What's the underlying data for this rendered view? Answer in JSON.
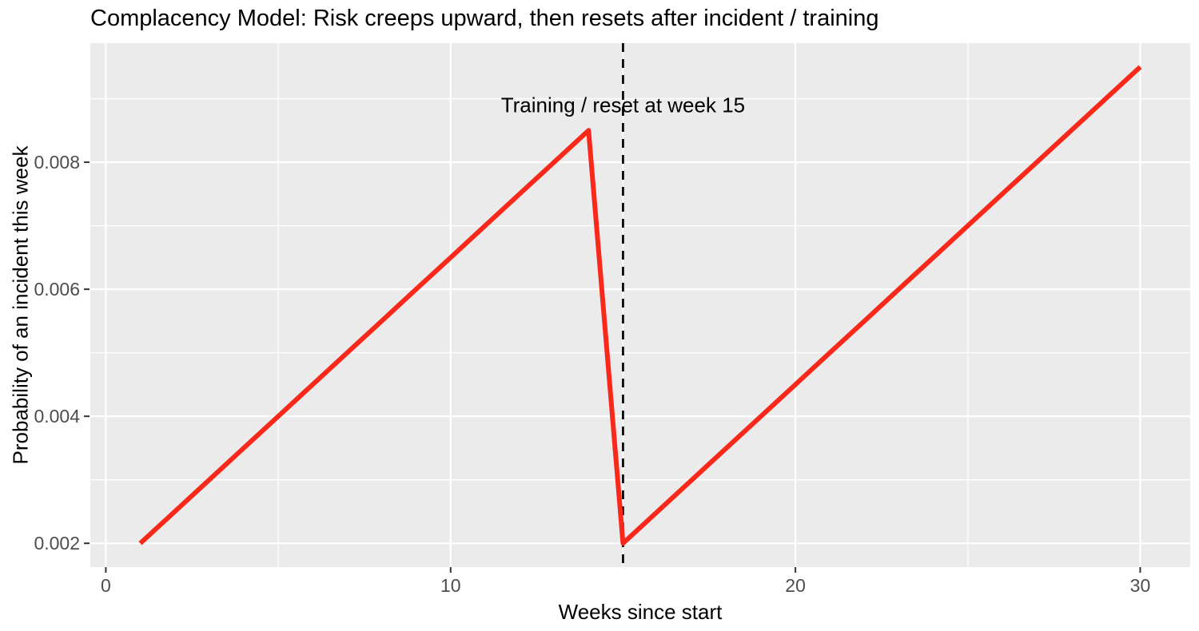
{
  "chart_data": {
    "type": "line",
    "title": "Complacency Model: Risk creeps upward, then resets after incident / training",
    "xlabel": "Weeks since start",
    "ylabel": "Probability of an incident this week",
    "x": [
      1,
      2,
      3,
      4,
      5,
      6,
      7,
      8,
      9,
      10,
      11,
      12,
      13,
      14,
      15,
      16,
      17,
      18,
      19,
      20,
      21,
      22,
      23,
      24,
      25,
      26,
      27,
      28,
      29,
      30
    ],
    "y": [
      0.002,
      0.0025,
      0.003,
      0.0035,
      0.004,
      0.0045,
      0.005,
      0.0055,
      0.006,
      0.0065,
      0.007,
      0.0075,
      0.008,
      0.0085,
      0.002,
      0.0025,
      0.003,
      0.0035,
      0.004,
      0.0045,
      0.005,
      0.0055,
      0.006,
      0.0065,
      0.007,
      0.0075,
      0.008,
      0.0085,
      0.009,
      0.0095
    ],
    "xlim": [
      -0.45,
      31.45
    ],
    "ylim": [
      0.001625,
      0.009875
    ],
    "x_ticks": [
      0,
      10,
      20,
      30
    ],
    "x_tick_labels": [
      "0",
      "10",
      "20",
      "30"
    ],
    "y_ticks": [
      0.002,
      0.004,
      0.006,
      0.008
    ],
    "y_tick_labels": [
      "0.002",
      "0.004",
      "0.006",
      "0.008"
    ],
    "x_minor_ticks": [
      5,
      15,
      25
    ],
    "y_minor_ticks": [
      0.003,
      0.005,
      0.007,
      0.009
    ],
    "grid": true,
    "legend_position": "none",
    "line_color": "#F8281A",
    "panel_bg": "#EBEBEB",
    "grid_color": "#FFFFFF",
    "tick_mark_color": "#333333",
    "tick_label_color": "#4D4D4D",
    "vline": {
      "x": 15,
      "style": "dashed",
      "color": "#000000"
    },
    "annotation": {
      "text": "Training / reset at week 15",
      "x": 15,
      "y": 0.0089
    }
  }
}
